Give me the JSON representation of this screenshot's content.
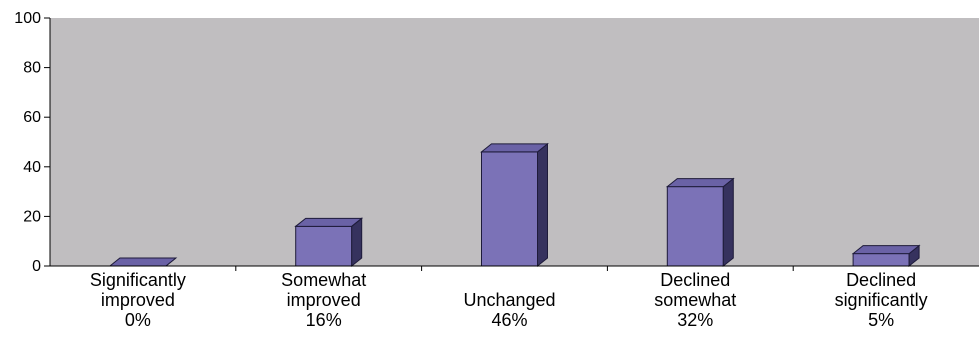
{
  "chart_data": {
    "type": "bar",
    "categories": [
      [
        "Significantly",
        "improved",
        "0%"
      ],
      [
        "Somewhat",
        "improved",
        "16%"
      ],
      [
        "",
        "Unchanged",
        "46%"
      ],
      [
        "Declined",
        "somewhat",
        "32%"
      ],
      [
        "Declined",
        "significantly",
        "5%"
      ]
    ],
    "values": [
      0,
      16,
      46,
      32,
      5
    ],
    "ylim": [
      0,
      100
    ],
    "yticks": [
      0,
      20,
      40,
      60,
      80,
      100
    ],
    "title": "",
    "xlabel": "",
    "ylabel": "",
    "grid": false,
    "legend": "none",
    "colors": {
      "plot_bg": "#c0bec0",
      "bar_front": "#7b72b7",
      "bar_top": "#6a62a6",
      "bar_side": "#36325e",
      "bar_stroke": "#1e1b3a"
    }
  }
}
